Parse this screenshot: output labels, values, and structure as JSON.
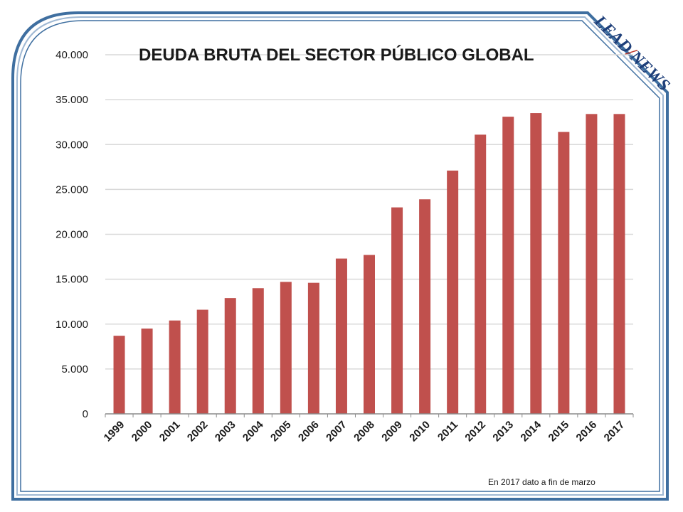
{
  "logo": {
    "part1": "LEAD",
    "separator": "/",
    "part2": "NEWS"
  },
  "footnote": "En 2017 dato a fin de marzo",
  "colors": {
    "bar": "#c0504d",
    "border": "#3f6fa0",
    "grid": "#d9d9d9"
  },
  "chart_data": {
    "type": "bar",
    "title": "DEUDA BRUTA DEL SECTOR PÚBLICO GLOBAL",
    "xlabel": "",
    "ylabel": "",
    "grid": true,
    "legend": "none",
    "ylim": [
      0,
      40000
    ],
    "yticks": [
      0,
      5000,
      10000,
      15000,
      20000,
      25000,
      30000,
      35000,
      40000
    ],
    "ytick_labels": [
      "0",
      "5.000",
      "10.000",
      "15.000",
      "20.000",
      "25.000",
      "30.000",
      "35.000",
      "40.000"
    ],
    "categories": [
      "1999",
      "2000",
      "2001",
      "2002",
      "2003",
      "2004",
      "2005",
      "2006",
      "2007",
      "2008",
      "2009",
      "2010",
      "2011",
      "2012",
      "2013",
      "2014",
      "2015",
      "2016",
      "2017"
    ],
    "values": [
      8700,
      9500,
      10400,
      11600,
      12900,
      14000,
      14700,
      14600,
      17300,
      17700,
      23000,
      23900,
      27100,
      31100,
      33100,
      33500,
      31400,
      33400,
      33400
    ]
  }
}
